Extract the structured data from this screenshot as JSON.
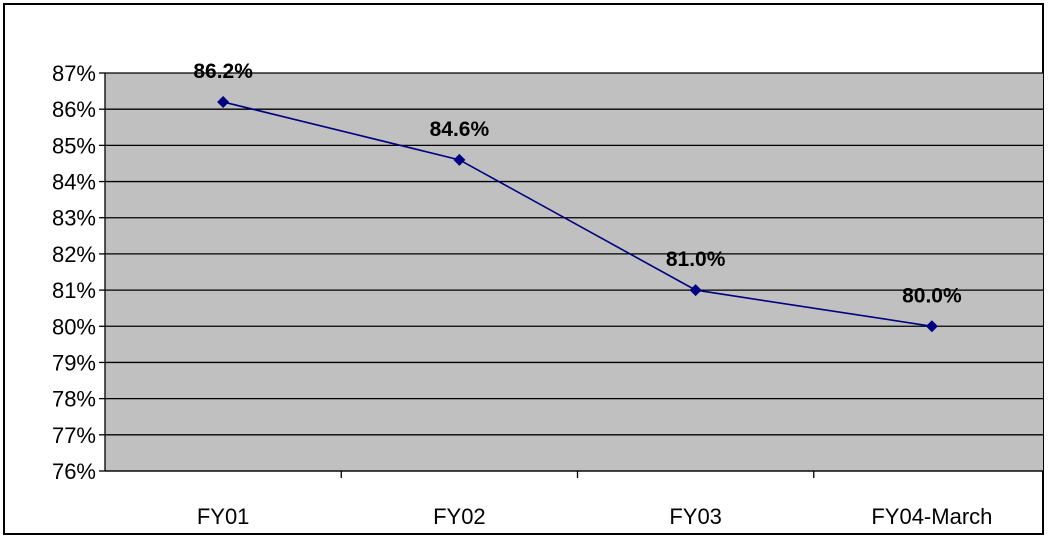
{
  "chart_data": {
    "type": "line",
    "categories": [
      "FY01",
      "FY02",
      "FY03",
      "FY04-March"
    ],
    "series": [
      {
        "values": [
          86.2,
          84.6,
          81.0,
          80.0
        ],
        "data_labels": [
          "86.2%",
          "84.6%",
          "81.0%",
          "80.0%"
        ]
      }
    ],
    "ylim": [
      76,
      87
    ],
    "y_ticks": [
      "76%",
      "77%",
      "78%",
      "79%",
      "80%",
      "81%",
      "82%",
      "83%",
      "84%",
      "85%",
      "86%",
      "87%"
    ],
    "grid": true,
    "legend": false,
    "colors": {
      "plot_background": "#c0c0c0",
      "line": "#000080",
      "marker": "#000080",
      "gridline": "#000000"
    }
  }
}
